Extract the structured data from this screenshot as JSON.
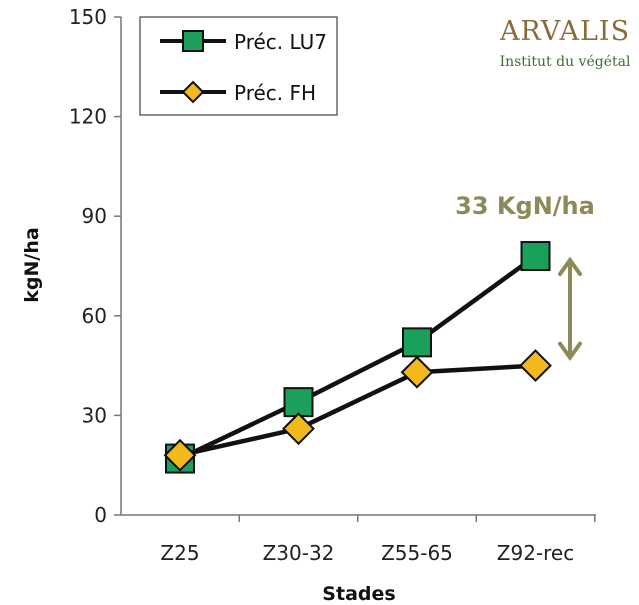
{
  "chart_data": {
    "type": "line",
    "title": "",
    "xlabel": "Stades",
    "ylabel": "kgN/ha",
    "categories": [
      "Z25",
      "Z30-32",
      "Z55-65",
      "Z92-rec"
    ],
    "ylim": [
      0,
      150
    ],
    "yticks": [
      0,
      30,
      60,
      90,
      120,
      150
    ],
    "grid": false,
    "legend_position": "top-left",
    "series": [
      {
        "name": "Préc. LU7",
        "values": [
          17,
          34,
          52,
          78
        ],
        "color": "#1aa05a",
        "marker": "square"
      },
      {
        "name": "Préc. FH",
        "values": [
          18,
          26,
          43,
          45
        ],
        "color": "#f2b81c",
        "marker": "diamond"
      }
    ],
    "annotation": {
      "text": "33 KgN/ha",
      "color": "#8c8a58",
      "from_value": 45,
      "to_value": 78,
      "category": "Z92-rec"
    }
  },
  "logo": {
    "main": "ARVALIS",
    "sub": "Institut du végétal",
    "main_color": "#8a6c3a",
    "sub_color": "#3f6e2a"
  }
}
